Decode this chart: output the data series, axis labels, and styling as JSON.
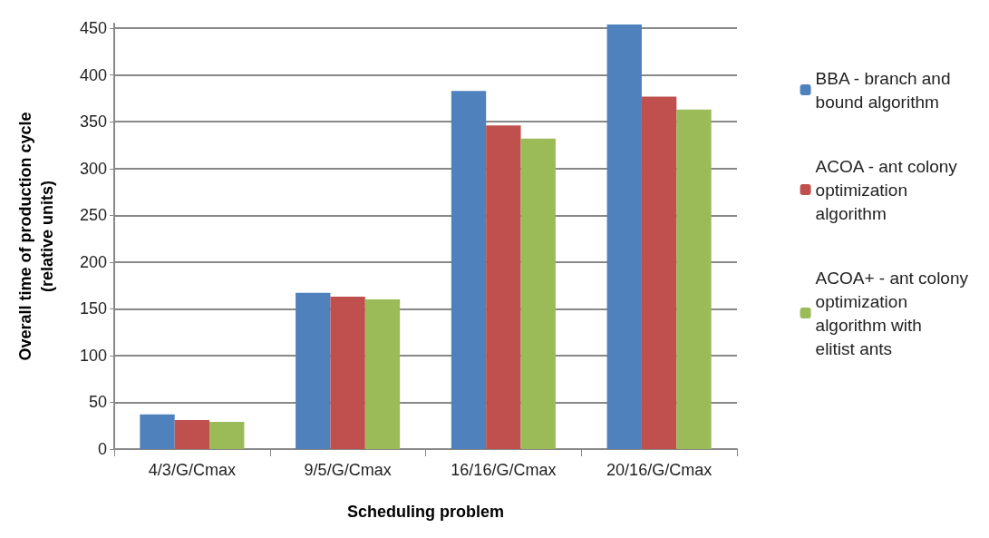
{
  "chart_data": {
    "type": "bar",
    "xlabel": "Scheduling problem",
    "ylabel": "Overall time of production cycle\n(relative units)",
    "categories": [
      "4/3/G/Cmax",
      "9/5/G/Cmax",
      "16/16/G/Cmax",
      "20/16/G/Cmax"
    ],
    "series": [
      {
        "name": "BBA - branch and\nbound algorithm",
        "color": "#4f81bd",
        "values": [
          37,
          167,
          383,
          454
        ]
      },
      {
        "name": "ACOA - ant colony\noptimization\nalgorithm",
        "color": "#c0504d",
        "values": [
          31,
          163,
          346,
          377
        ]
      },
      {
        "name": "ACOA+ - ant colony\noptimization\nalgorithm with\nelitist ants",
        "color": "#9bbb59",
        "values": [
          29,
          160,
          332,
          363
        ]
      }
    ],
    "ylim": [
      0,
      455
    ],
    "yticks": [
      0,
      50,
      100,
      150,
      200,
      250,
      300,
      350,
      400,
      450
    ],
    "grid": "y",
    "legend": "right"
  }
}
